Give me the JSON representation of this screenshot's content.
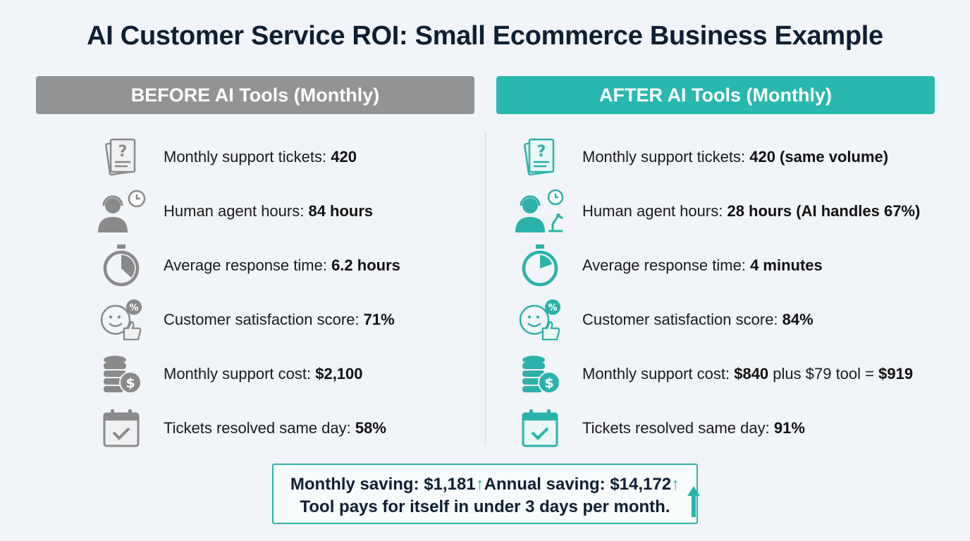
{
  "title": "AI Customer Service ROI: Small Ecommerce Business Example",
  "before": {
    "header": "BEFORE AI Tools (Monthly)",
    "rows": [
      {
        "icon": "ticket-question-icon",
        "label": "Monthly support tickets: ",
        "value": "420"
      },
      {
        "icon": "agent-headset-clock-icon",
        "label": "Human agent hours: ",
        "value": "84 hours"
      },
      {
        "icon": "stopwatch-icon",
        "label": "Average response time: ",
        "value": "6.2 hours"
      },
      {
        "icon": "smiley-thumbs-up-icon",
        "label": "Customer satisfaction score: ",
        "value": "71%"
      },
      {
        "icon": "coins-dollar-icon",
        "label": "Monthly support cost: ",
        "value": "$2,100"
      },
      {
        "icon": "calendar-check-icon",
        "label": "Tickets resolved same day: ",
        "value": "58%"
      }
    ]
  },
  "after": {
    "header": "AFTER AI Tools (Monthly)",
    "rows": [
      {
        "icon": "ticket-question-icon",
        "label": "Monthly support tickets: ",
        "value": "420 (same volume)"
      },
      {
        "icon": "agent-headset-robot-icon",
        "label": "Human agent hours: ",
        "value": "28 hours (AI handles 67%)"
      },
      {
        "icon": "stopwatch-icon",
        "label": "Average response time: ",
        "value": "4 minutes"
      },
      {
        "icon": "smiley-thumbs-up-icon",
        "label": "Customer satisfaction score: ",
        "value": "84%"
      },
      {
        "icon": "coins-dollar-icon",
        "label": "Monthly support cost: ",
        "value": "$840",
        "mid": " plus $79 tool = ",
        "total": "$919"
      },
      {
        "icon": "calendar-check-icon",
        "label": "Tickets resolved same day: ",
        "value": "91%"
      }
    ]
  },
  "summary": {
    "monthly": "Monthly saving: $1,181",
    "annual": "Annual saving: $14,172",
    "line2": "Tool pays for itself in under 3 days per month."
  },
  "colors": {
    "before_accent": "#929395",
    "after_accent": "#29b8b0",
    "title": "#0f1f33"
  }
}
